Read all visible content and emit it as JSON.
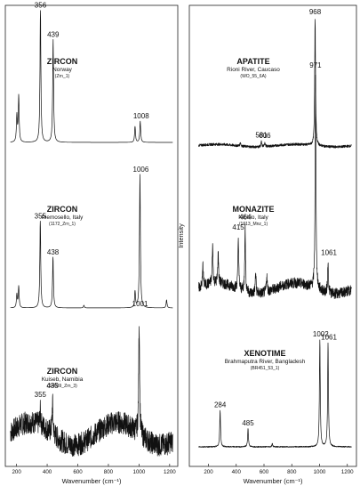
{
  "chart_data": [
    {
      "type": "line",
      "panel": "left",
      "xlabel": "Wavenumber (cm⁻¹)",
      "xlim": [
        150,
        1230
      ],
      "xticks": [
        200,
        400,
        600,
        800,
        1000,
        1200
      ],
      "series": [
        {
          "mineral": "ZIRCON",
          "location": "Norway",
          "sample": "(Zrn_1)",
          "peaks": [
            {
              "x": 202,
              "h": 0.2
            },
            {
              "x": 214,
              "h": 0.35
            },
            {
              "x": 356,
              "h": 1.0
            },
            {
              "x": 439,
              "h": 0.78
            },
            {
              "x": 974,
              "h": 0.12
            },
            {
              "x": 1008,
              "h": 0.16
            }
          ],
          "labels": [
            {
              "x": 356,
              "text": "356"
            },
            {
              "x": 439,
              "text": "439"
            },
            {
              "x": 1008,
              "text": "1008"
            }
          ],
          "baseline": 0.0,
          "noise": 0.0
        },
        {
          "mineral": "ZIRCON",
          "location": "Piemosello, Italy",
          "sample": "(1172_Zrn_1)",
          "peaks": [
            {
              "x": 202,
              "h": 0.1
            },
            {
              "x": 214,
              "h": 0.16
            },
            {
              "x": 355,
              "h": 0.65
            },
            {
              "x": 438,
              "h": 0.38
            },
            {
              "x": 640,
              "h": 0.02
            },
            {
              "x": 974,
              "h": 0.12
            },
            {
              "x": 1006,
              "h": 1.0
            },
            {
              "x": 1180,
              "h": 0.06
            }
          ],
          "labels": [
            {
              "x": 355,
              "text": "355"
            },
            {
              "x": 438,
              "text": "438"
            },
            {
              "x": 1006,
              "text": "1006"
            }
          ],
          "baseline": 0.0,
          "noise": 0.0
        },
        {
          "mineral": "ZIRCON",
          "location": "Kuiseb, Namibia",
          "sample": "(S4039_Zrn_3)",
          "peaks": [
            {
              "x": 355,
              "h": 0.12
            },
            {
              "x": 435,
              "h": 0.28
            },
            {
              "x": 1001,
              "h": 1.0
            }
          ],
          "labels": [
            {
              "x": 355,
              "text": "355"
            },
            {
              "x": 435,
              "text": "435"
            },
            {
              "x": 1001,
              "text": "1001"
            }
          ],
          "baseline": 0.2,
          "noise": 0.1
        }
      ]
    },
    {
      "type": "line",
      "panel": "right",
      "xlabel": "Wavenumber (cm⁻¹)",
      "ylabel": "Intensity",
      "xlim": [
        120,
        1240
      ],
      "xticks": [
        200,
        400,
        600,
        800,
        1000,
        1200
      ],
      "series": [
        {
          "mineral": "APATITE",
          "location": "Rioni River, Caucaso",
          "sample": "(WO_55_6A)",
          "peaks": [
            {
              "x": 430,
              "h": 0.03
            },
            {
              "x": 581,
              "h": 0.04
            },
            {
              "x": 606,
              "h": 0.035
            },
            {
              "x": 968,
              "h": 1.0
            }
          ],
          "labels": [
            {
              "x": 581,
              "text": "581"
            },
            {
              "x": 606,
              "text": "606"
            },
            {
              "x": 968,
              "text": "968"
            }
          ],
          "baseline": 0.02,
          "noise": 0.01
        },
        {
          "mineral": "MONAZITE",
          "location": "Nibbio, Italy",
          "sample": "(1613_Mnz_1)",
          "peaks": [
            {
              "x": 160,
              "h": 0.1
            },
            {
              "x": 230,
              "h": 0.18
            },
            {
              "x": 270,
              "h": 0.14
            },
            {
              "x": 415,
              "h": 0.24
            },
            {
              "x": 464,
              "h": 0.3
            },
            {
              "x": 540,
              "h": 0.1
            },
            {
              "x": 620,
              "h": 0.08
            },
            {
              "x": 971,
              "h": 1.0
            },
            {
              "x": 1061,
              "h": 0.14
            }
          ],
          "labels": [
            {
              "x": 415,
              "text": "415"
            },
            {
              "x": 464,
              "text": "464"
            },
            {
              "x": 971,
              "text": "971"
            },
            {
              "x": 1061,
              "text": "1061"
            }
          ],
          "baseline": 0.05,
          "noise": 0.025
        },
        {
          "mineral": "XENOTIME",
          "location": "Brahmaputra River, Bangladesh",
          "sample": "(BR451_53_1)",
          "peaks": [
            {
              "x": 284,
              "h": 0.34
            },
            {
              "x": 485,
              "h": 0.17
            },
            {
              "x": 660,
              "h": 0.03
            },
            {
              "x": 1002,
              "h": 1.0
            },
            {
              "x": 1061,
              "h": 0.97
            }
          ],
          "labels": [
            {
              "x": 284,
              "text": "284"
            },
            {
              "x": 485,
              "text": "485"
            },
            {
              "x": 1002,
              "text": "1002"
            },
            {
              "x": 1061,
              "text": "1061"
            }
          ],
          "baseline": 0.0,
          "noise": 0.005
        }
      ]
    }
  ]
}
